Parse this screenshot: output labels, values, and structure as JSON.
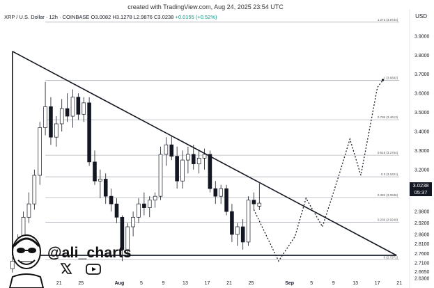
{
  "credit": "created with TradingView.com, Aug 24, 2025 23:54 UTC",
  "symbol_line": {
    "name": "XRP / U.S. Dollar · 12h · COINBASE",
    "ohlc": "O3.0082 H3.1278 L2.9876 C3.0238",
    "change": "+0.0155 (+0.52%)"
  },
  "currency": "USD",
  "price_tag": {
    "price": "3.0238",
    "countdown": "05:37"
  },
  "social": {
    "handle": "@ali_charts",
    "icons": [
      "avatar-caricature",
      "x-logo-icon",
      "youtube-logo-icon"
    ]
  },
  "colors": {
    "up": "#089981",
    "down": "#131722",
    "line": "#131722",
    "fib": "#b2b5be"
  },
  "chart_data": {
    "type": "candlestick",
    "timeframe": "12h",
    "ylim": [
      2.63,
      3.98
    ],
    "y_ticks": [
      {
        "v": 3.9,
        "label": "3.9000"
      },
      {
        "v": 3.8,
        "label": "3.8000"
      },
      {
        "v": 3.7,
        "label": "3.7000"
      },
      {
        "v": 3.6,
        "label": "3.6000"
      },
      {
        "v": 3.5,
        "label": "3.5000"
      },
      {
        "v": 3.4,
        "label": "3.4000"
      },
      {
        "v": 3.3,
        "label": "3.3000"
      },
      {
        "v": 3.2,
        "label": "3.2000"
      },
      {
        "v": 3.1,
        "label": "3.1000"
      },
      {
        "v": 2.98,
        "label": "2.9800"
      },
      {
        "v": 2.92,
        "label": "2.9200"
      },
      {
        "v": 2.86,
        "label": "2.8600"
      },
      {
        "v": 2.81,
        "label": "2.8100"
      },
      {
        "v": 2.76,
        "label": "2.7600"
      },
      {
        "v": 2.71,
        "label": "2.7100"
      },
      {
        "v": 2.665,
        "label": "2.6650"
      },
      {
        "v": 2.63,
        "label": "2.6300"
      }
    ],
    "x_ticks": [
      {
        "x": 0.5,
        "label": "13"
      },
      {
        "x": 8.5,
        "label": "21"
      },
      {
        "x": 12.5,
        "label": "25"
      },
      {
        "x": 19.5,
        "label": "Aug"
      },
      {
        "x": 23.5,
        "label": "5"
      },
      {
        "x": 27.5,
        "label": "9"
      },
      {
        "x": 31.5,
        "label": "13"
      },
      {
        "x": 35.5,
        "label": "17"
      },
      {
        "x": 39.5,
        "label": "21"
      },
      {
        "x": 43.5,
        "label": "25"
      },
      {
        "x": 50.5,
        "label": "Sep"
      },
      {
        "x": 54.5,
        "label": "5"
      },
      {
        "x": 58.5,
        "label": "9"
      },
      {
        "x": 62.5,
        "label": "13"
      },
      {
        "x": 66.5,
        "label": "17"
      },
      {
        "x": 70.5,
        "label": "21"
      }
    ],
    "xlim": [
      -1.5,
      72
    ],
    "fib_levels": [
      {
        "label": "1.272 (3.9734)",
        "value": 3.9734
      },
      {
        "label": "1 (3.6682)",
        "value": 3.6682
      },
      {
        "label": "0.786 (3.4613)",
        "value": 3.4613
      },
      {
        "label": "0.618 (3.2754)",
        "value": 3.2754
      },
      {
        "label": "0.5 (3.1621)",
        "value": 3.1621
      },
      {
        "label": "0.382 (3.0536)",
        "value": 3.0536
      },
      {
        "label": "0.236 (2.9240)",
        "value": 2.924
      },
      {
        "label": "0 (2.7271)",
        "value": 2.7271
      }
    ],
    "fib_x_range": [
      6.0,
      70.5
    ],
    "triangle": {
      "upper": [
        [
          0.0,
          3.82
        ],
        [
          70.0,
          2.75
        ]
      ],
      "lower": [
        [
          0.0,
          2.75
        ],
        [
          70.0,
          2.75
        ]
      ],
      "left": [
        [
          0.0,
          2.75
        ],
        [
          0.0,
          3.82
        ]
      ]
    },
    "projection": [
      [
        44.0,
        2.99
      ],
      [
        48.5,
        2.72
      ],
      [
        51.5,
        2.85
      ],
      [
        53.5,
        3.05
      ],
      [
        56.5,
        2.9
      ],
      [
        59.5,
        3.17
      ],
      [
        61.5,
        3.36
      ],
      [
        63.5,
        3.17
      ],
      [
        66.5,
        3.63
      ],
      [
        67.5,
        3.67
      ]
    ],
    "candles": [
      [
        0,
        2.68,
        2.74,
        2.66,
        2.72
      ],
      [
        1,
        2.72,
        2.86,
        2.7,
        2.83
      ],
      [
        2,
        2.83,
        2.98,
        2.81,
        2.95
      ],
      [
        3,
        2.95,
        3.08,
        2.92,
        3.02
      ],
      [
        4,
        3.02,
        3.2,
        2.99,
        3.17
      ],
      [
        5,
        3.17,
        3.45,
        3.12,
        3.42
      ],
      [
        6,
        3.42,
        3.66,
        3.38,
        3.53
      ],
      [
        7,
        3.53,
        3.58,
        3.33,
        3.37
      ],
      [
        8,
        3.37,
        3.48,
        3.32,
        3.44
      ],
      [
        9,
        3.44,
        3.57,
        3.4,
        3.52
      ],
      [
        10,
        3.52,
        3.6,
        3.45,
        3.48
      ],
      [
        11,
        3.48,
        3.62,
        3.42,
        3.58
      ],
      [
        12,
        3.58,
        3.6,
        3.46,
        3.49
      ],
      [
        13,
        3.49,
        3.58,
        3.45,
        3.55
      ],
      [
        14,
        3.55,
        3.58,
        3.22,
        3.24
      ],
      [
        15,
        3.24,
        3.3,
        3.12,
        3.14
      ],
      [
        16,
        3.14,
        3.2,
        3.05,
        3.15
      ],
      [
        17,
        3.15,
        3.18,
        3.02,
        3.06
      ],
      [
        18,
        3.06,
        3.1,
        2.98,
        3.02
      ],
      [
        19,
        3.02,
        3.05,
        2.92,
        2.95
      ],
      [
        20,
        2.95,
        2.96,
        2.72,
        2.78
      ],
      [
        21,
        2.78,
        2.92,
        2.74,
        2.9
      ],
      [
        22,
        2.9,
        2.98,
        2.85,
        2.95
      ],
      [
        23,
        2.95,
        3.05,
        2.92,
        3.02
      ],
      [
        24,
        3.02,
        3.08,
        2.96,
        3.0
      ],
      [
        25,
        3.0,
        3.06,
        2.95,
        3.04
      ],
      [
        26,
        3.04,
        3.08,
        3.0,
        3.06
      ],
      [
        27,
        3.06,
        3.32,
        3.04,
        3.28
      ],
      [
        28,
        3.28,
        3.37,
        3.22,
        3.33
      ],
      [
        29,
        3.33,
        3.38,
        3.25,
        3.27
      ],
      [
        30,
        3.27,
        3.32,
        3.1,
        3.14
      ],
      [
        31,
        3.14,
        3.3,
        3.1,
        3.25
      ],
      [
        32,
        3.25,
        3.32,
        3.18,
        3.28
      ],
      [
        33,
        3.28,
        3.33,
        3.2,
        3.23
      ],
      [
        34,
        3.23,
        3.3,
        3.18,
        3.26
      ],
      [
        35,
        3.26,
        3.31,
        3.2,
        3.28
      ],
      [
        36,
        3.28,
        3.3,
        3.08,
        3.1
      ],
      [
        37,
        3.1,
        3.14,
        3.02,
        3.06
      ],
      [
        38,
        3.06,
        3.12,
        3.02,
        3.1
      ],
      [
        39,
        3.1,
        3.12,
        2.96,
        2.98
      ],
      [
        40,
        2.98,
        3.02,
        2.82,
        2.86
      ],
      [
        41,
        2.86,
        2.92,
        2.8,
        2.9
      ],
      [
        42,
        2.9,
        2.94,
        2.78,
        2.82
      ],
      [
        43,
        2.82,
        3.06,
        2.8,
        3.04
      ],
      [
        44,
        3.04,
        3.08,
        2.99,
        3.02
      ],
      [
        45,
        3.0082,
        3.1278,
        2.9876,
        3.0238
      ]
    ]
  }
}
